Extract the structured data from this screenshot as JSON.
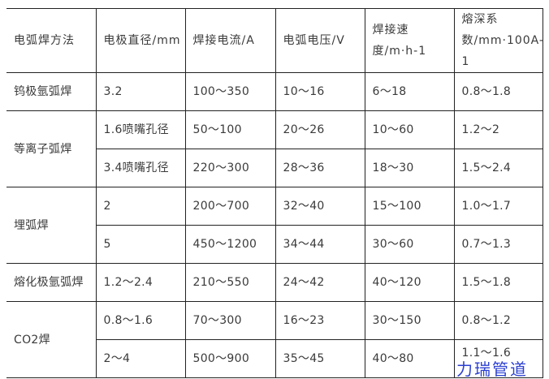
{
  "table": {
    "headers": [
      "电弧焊方法",
      "电极直径/mm",
      "焊接电流/A",
      "电弧电压/V",
      "焊接速度/m·h-1",
      "熔深系数/mm·100A-1"
    ],
    "groups": [
      {
        "method": "钨极氩弧焊",
        "rows": [
          [
            "3.2",
            "100～350",
            "10～16",
            "6～18",
            "0.8～1.8"
          ]
        ]
      },
      {
        "method": "等离子弧焊",
        "rows": [
          [
            "1.6喷嘴孔径",
            "50～100",
            "20～26",
            "10～60",
            "1.2～2"
          ],
          [
            "3.4喷嘴孔径",
            "220～300",
            "28～36",
            "18～30",
            "1.5～2.4"
          ]
        ]
      },
      {
        "method": "埋弧焊",
        "rows": [
          [
            "2",
            "200～700",
            "32～40",
            "15～100",
            "1.0～1.7"
          ],
          [
            "5",
            "450～1200",
            "34～44",
            "30～60",
            "0.7～1.3"
          ]
        ]
      },
      {
        "method": "熔化极氩弧焊",
        "rows": [
          [
            "1.2～2.4",
            "210～550",
            "24～42",
            "40～120",
            "1.5～1.8"
          ]
        ]
      },
      {
        "method": "CO2焊",
        "rows": [
          [
            "0.8～1.6",
            "70～300",
            "16～23",
            "30～150",
            "0.8～1.2"
          ],
          [
            "2～4",
            "500～900",
            "35～45",
            "40～80",
            "1.1～1.6"
          ]
        ]
      }
    ]
  },
  "watermark": "力瑞管道"
}
